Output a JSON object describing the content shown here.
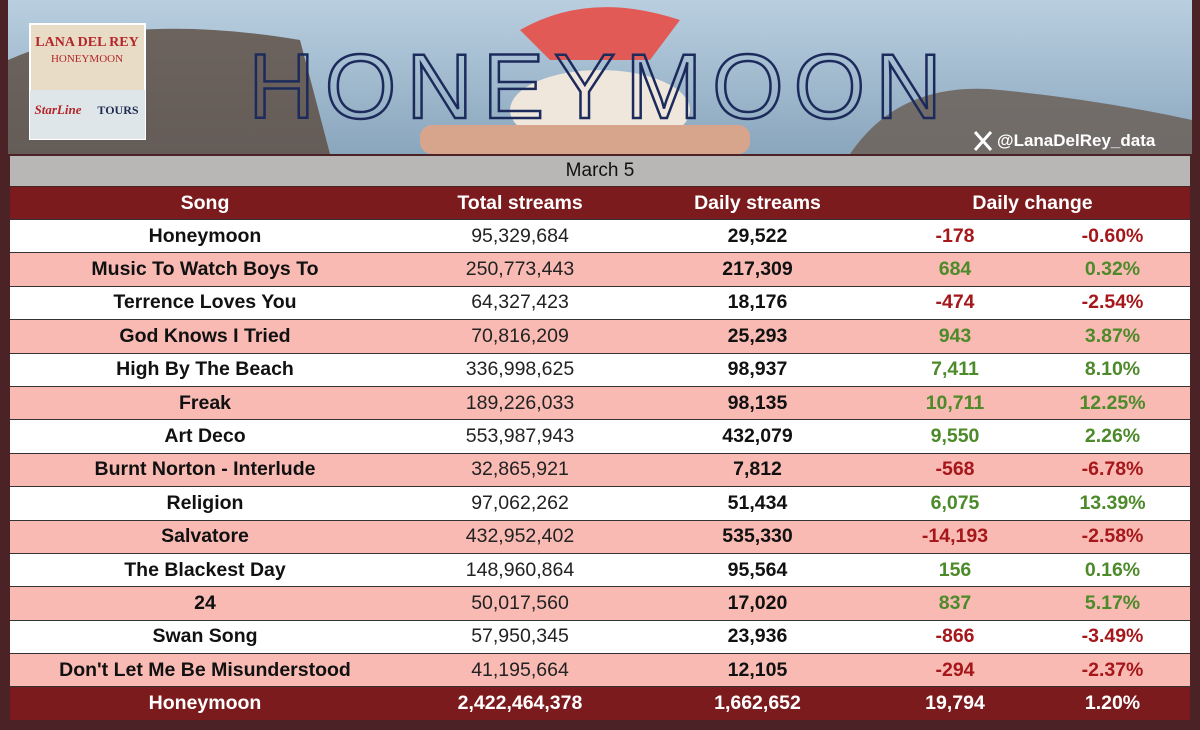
{
  "banner": {
    "cover_artist": "LANA DEL REY",
    "cover_album": "HONEYMOON",
    "cover_sign_1": "StarLine",
    "cover_sign_2": "TOURS",
    "title": "HONEYMOON",
    "handle": "@LanaDelRey_data"
  },
  "date": "March 5",
  "table": {
    "header": [
      "Song",
      "Total streams",
      "Daily streams",
      "Daily change"
    ],
    "rows": [
      [
        "Honeymoon",
        "95,329,684",
        "29,522",
        "-178",
        "-0.60%"
      ],
      [
        "Music To Watch Boys To",
        "250,773,443",
        "217,309",
        "684",
        "0.32%"
      ],
      [
        "Terrence Loves You",
        "64,327,423",
        "18,176",
        "-474",
        "-2.54%"
      ],
      [
        "God Knows I Tried",
        "70,816,209",
        "25,293",
        "943",
        "3.87%"
      ],
      [
        "High By The Beach",
        "336,998,625",
        "98,937",
        "7,411",
        "8.10%"
      ],
      [
        "Freak",
        "189,226,033",
        "98,135",
        "10,711",
        "12.25%"
      ],
      [
        "Art Deco",
        "553,987,943",
        "432,079",
        "9,550",
        "2.26%"
      ],
      [
        "Burnt Norton - Interlude",
        "32,865,921",
        "7,812",
        "-568",
        "-6.78%"
      ],
      [
        "Religion",
        "97,062,262",
        "51,434",
        "6,075",
        "13.39%"
      ],
      [
        "Salvatore",
        "432,952,402",
        "535,330",
        "-14,193",
        "-2.58%"
      ],
      [
        "The Blackest Day",
        "148,960,864",
        "95,564",
        "156",
        "0.16%"
      ],
      [
        "24",
        "50,017,560",
        "17,020",
        "837",
        "5.17%"
      ],
      [
        "Swan Song",
        "57,950,345",
        "23,936",
        "-866",
        "-3.49%"
      ],
      [
        "Don't Let Me Be Misunderstood",
        "41,195,664",
        "12,105",
        "-294",
        "-2.37%"
      ]
    ],
    "footer": [
      "Honeymoon",
      "2,422,464,378",
      "1,662,652",
      "19,794",
      "1.20%"
    ]
  }
}
